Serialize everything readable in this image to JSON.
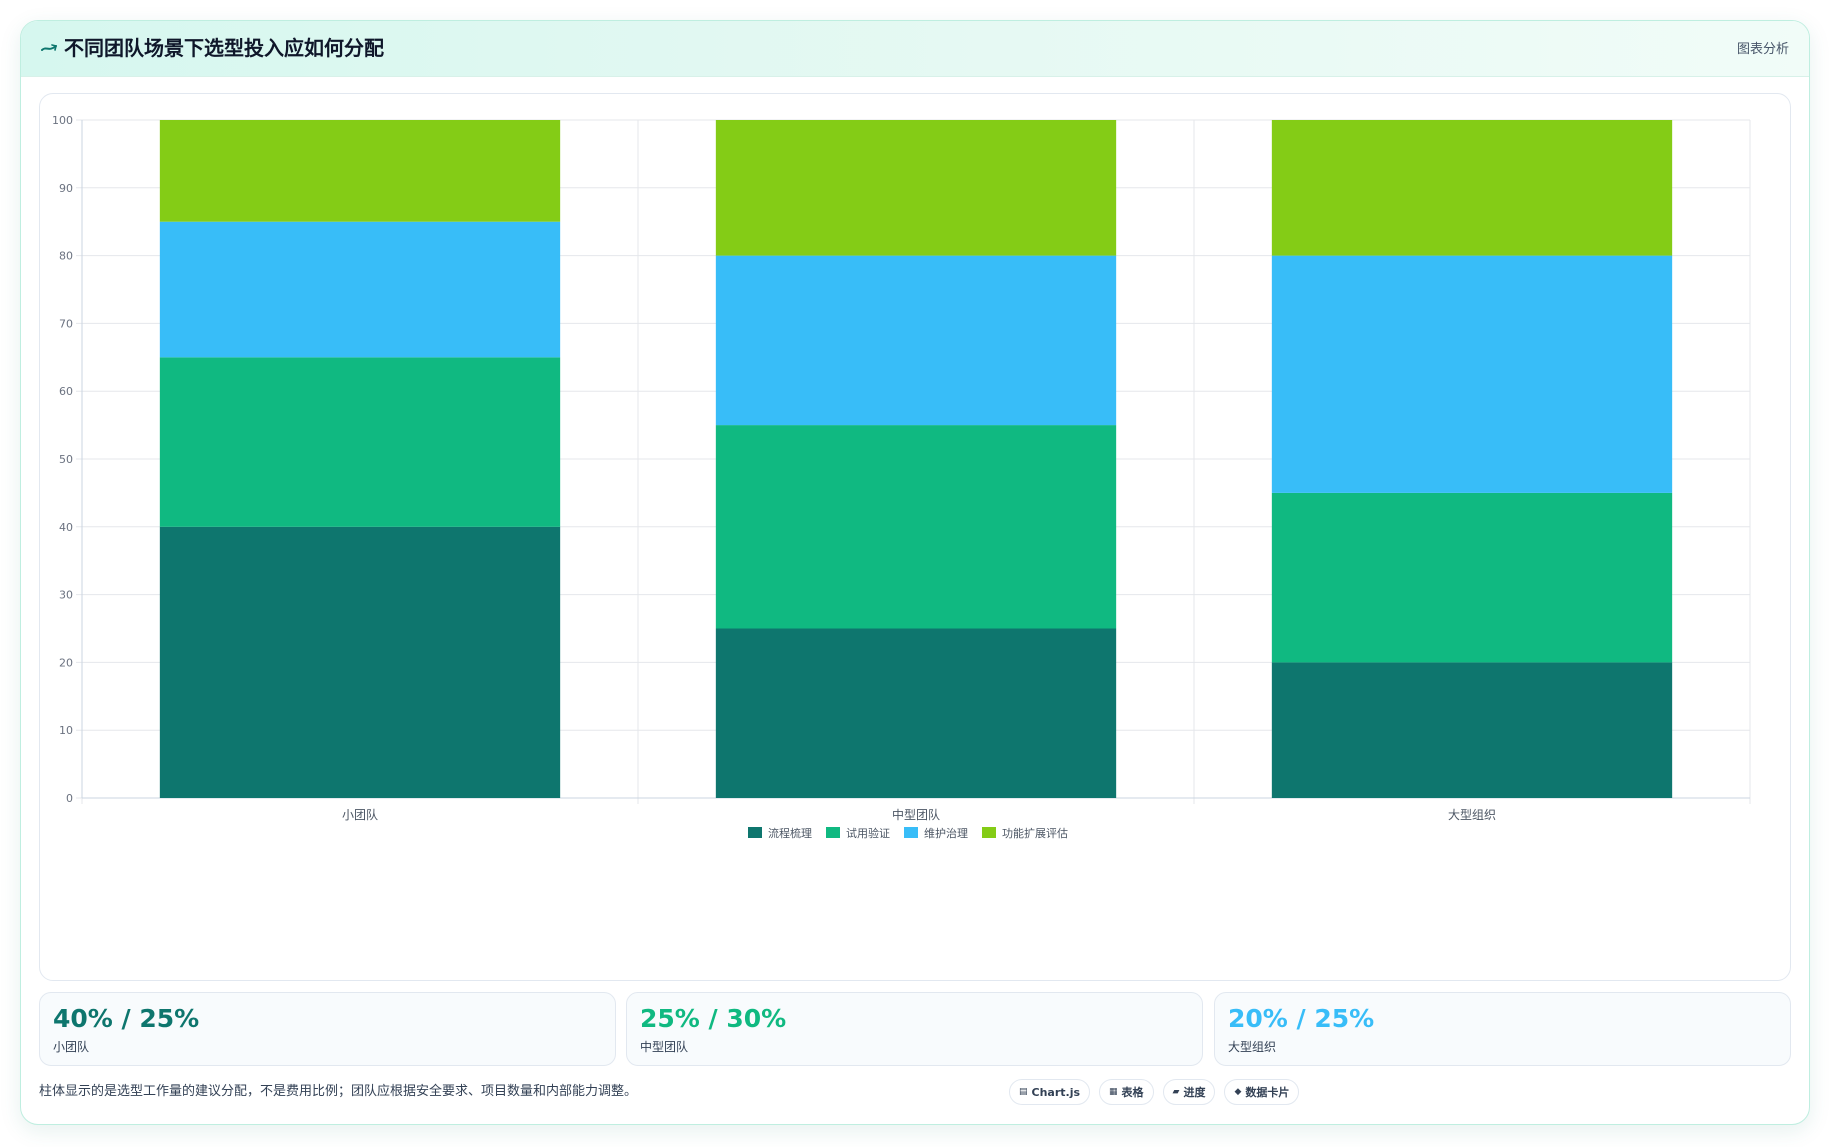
{
  "header": {
    "title": "不同团队场景下选型投入应如何分配",
    "action_label": "图表分析"
  },
  "colors": {
    "accent": "#0e766e",
    "series": [
      "#0e766e",
      "#10b981",
      "#38bdf8",
      "#84cc16"
    ]
  },
  "chart_data": {
    "type": "bar",
    "stacked": true,
    "categories": [
      "小团队",
      "中型团队",
      "大型组织"
    ],
    "series": [
      {
        "name": "流程梳理",
        "values": [
          40,
          25,
          20
        ]
      },
      {
        "name": "试用验证",
        "values": [
          25,
          30,
          25
        ]
      },
      {
        "name": "维护治理",
        "values": [
          20,
          25,
          35
        ]
      },
      {
        "name": "功能扩展评估",
        "values": [
          15,
          20,
          20
        ]
      }
    ],
    "ylim": [
      0,
      100
    ],
    "yticks": [
      0,
      10,
      20,
      30,
      40,
      50,
      60,
      70,
      80,
      90,
      100
    ],
    "grid": true,
    "legend_position": "bottom"
  },
  "stats": [
    {
      "value": "40% / 25%",
      "label": "小团队",
      "color": "#0e766e"
    },
    {
      "value": "25% / 30%",
      "label": "中型团队",
      "color": "#10b981"
    },
    {
      "value": "20% / 25%",
      "label": "大型组织",
      "color": "#38bdf8"
    }
  ],
  "footer": {
    "note": "柱体显示的是选型工作量的建议分配，不是费用比例；团队应根据安全要求、项目数量和内部能力调整。",
    "chips": [
      {
        "icon": "chart-icon",
        "glyph": "▤",
        "label": "Chart.js"
      },
      {
        "icon": "table-icon",
        "glyph": "▦",
        "label": "表格"
      },
      {
        "icon": "progress-icon",
        "glyph": "▰",
        "label": "进度"
      },
      {
        "icon": "data-card-icon",
        "glyph": "◆",
        "label": "数据卡片"
      }
    ]
  }
}
